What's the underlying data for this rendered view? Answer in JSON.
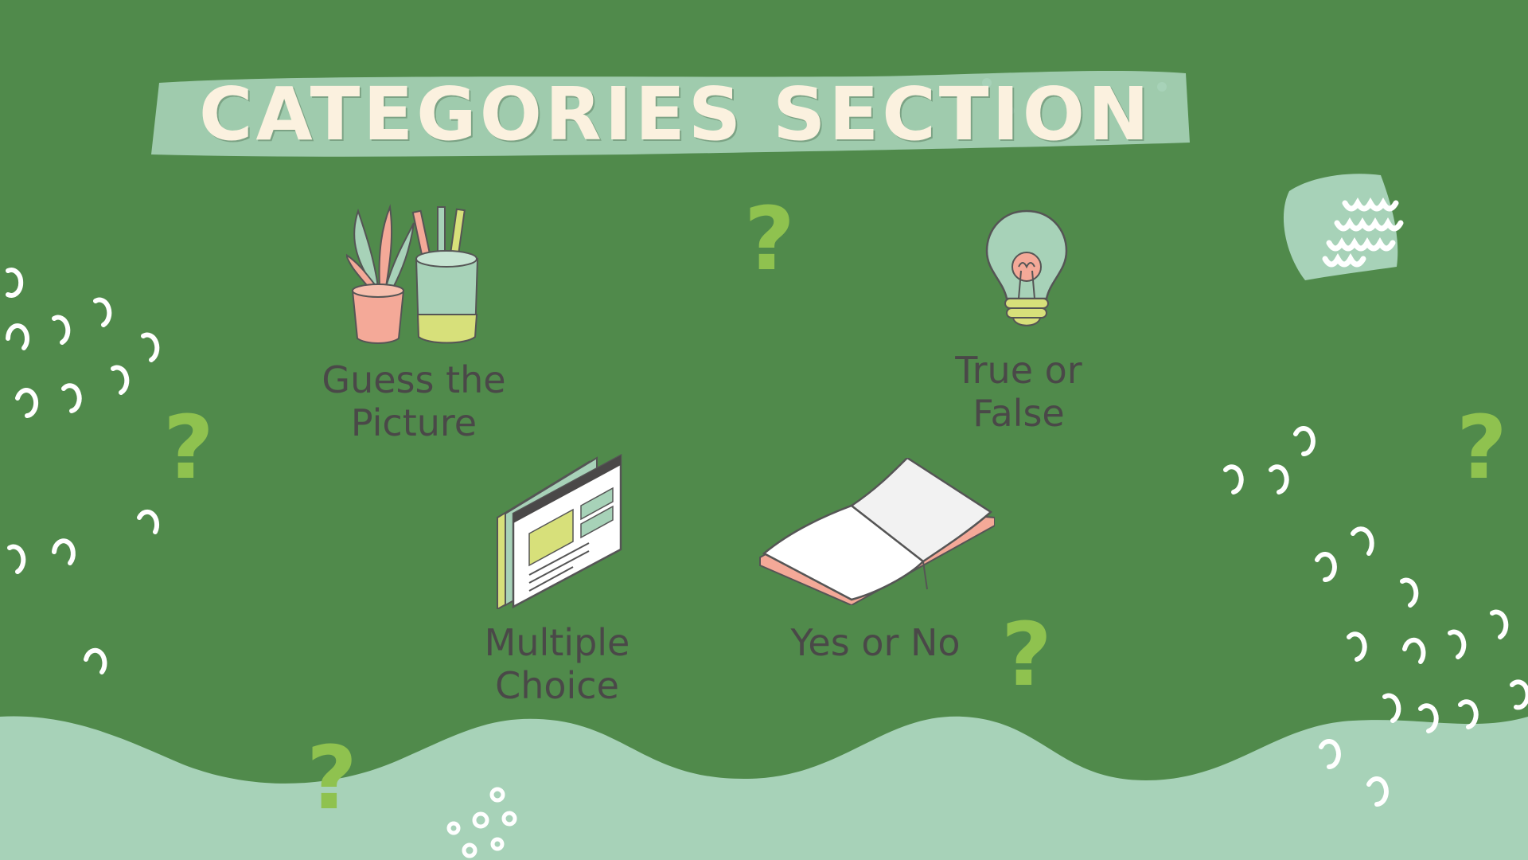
{
  "header": {
    "title": "CATEGORIES SECTION"
  },
  "categories": [
    {
      "label": "Guess the\nPicture",
      "icon": "plant-pencil-cup-icon"
    },
    {
      "label": "True or\nFalse",
      "icon": "light-bulb-icon"
    },
    {
      "label": "Multiple\nChoice",
      "icon": "browser-window-icon"
    },
    {
      "label": "Yes or No",
      "icon": "open-book-icon"
    }
  ],
  "colors": {
    "background": "#508a4b",
    "wave": "#a7d2b8",
    "title_text": "#fbf1df",
    "label_text": "#4a4848",
    "question_mark": "#8fc24f"
  }
}
